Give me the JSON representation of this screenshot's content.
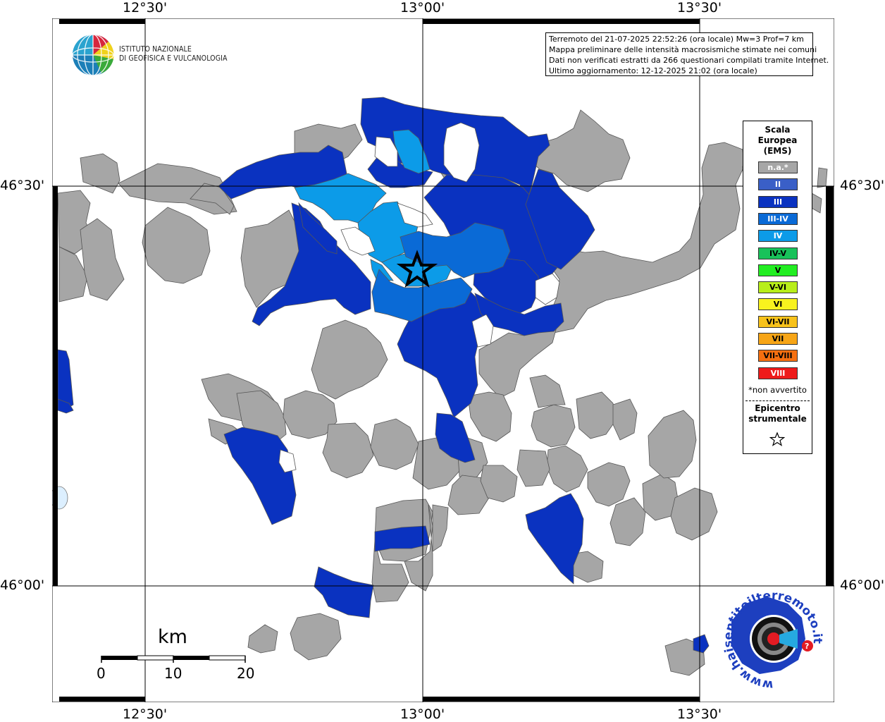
{
  "axes": {
    "top_labels": [
      "12°30'",
      "13°00'",
      "13°30'"
    ],
    "bottom_labels": [
      "12°30'",
      "13°00'",
      "13°30'"
    ],
    "left_labels": [
      "46°30'",
      "46°00'"
    ],
    "right_labels": [
      "46°30'",
      "46°00'"
    ]
  },
  "logo": {
    "line1": "ISTITUTO NAZIONALE",
    "line2": "DI GEOFISICA E VULCANOLOGIA"
  },
  "info": {
    "line1": "Terremoto del 21-07-2025 22:52:26 (ora locale) Mw=3 Prof=7 km",
    "line2": "Mappa preliminare delle intensità macrosismiche stimate nei comuni",
    "line3": "Dati non verificati estratti da 266 questionari compilati tramite Internet.",
    "line4": "Ultimo aggiornamento: 12-12-2025 21:02 (ora locale)"
  },
  "legend": {
    "title1": "Scala",
    "title2": "Europea",
    "title3": "(EMS)",
    "items": [
      {
        "label": "n.a.*",
        "color": "#a6a6a6",
        "text_color": "#ffffff"
      },
      {
        "label": "II",
        "color": "#3a5fc7",
        "text_color": "#ffffff"
      },
      {
        "label": "III",
        "color": "#0a32c0",
        "text_color": "#ffffff"
      },
      {
        "label": "III-IV",
        "color": "#0a6ad6",
        "text_color": "#ffffff"
      },
      {
        "label": "IV",
        "color": "#0c9be8",
        "text_color": "#ffffff"
      },
      {
        "label": "IV-V",
        "color": "#18c25a",
        "text_color": "#000000"
      },
      {
        "label": "V",
        "color": "#22ee22",
        "text_color": "#000000"
      },
      {
        "label": "V-VI",
        "color": "#b8ee1a",
        "text_color": "#000000"
      },
      {
        "label": "VI",
        "color": "#f8f21e",
        "text_color": "#000000"
      },
      {
        "label": "VI-VII",
        "color": "#f8c21a",
        "text_color": "#000000"
      },
      {
        "label": "VII",
        "color": "#f7a516",
        "text_color": "#000000"
      },
      {
        "label": "VII-VIII",
        "color": "#f56f10",
        "text_color": "#000000"
      },
      {
        "label": "VIII",
        "color": "#ee1a1a",
        "text_color": "#ffffff"
      }
    ],
    "not_felt": "*non avvertito",
    "epicenter1": "Epicentro",
    "epicenter2": "strumentale"
  },
  "scalebar": {
    "unit": "km",
    "labels": [
      "0",
      "10",
      "20"
    ]
  },
  "haisentito": {
    "url_text": "www.haisentitoilterremoto.it"
  }
}
